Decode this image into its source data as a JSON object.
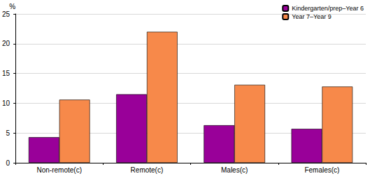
{
  "chart_data": {
    "type": "bar",
    "ylabel": "%",
    "categories": [
      "Non-remote(c)",
      "Remote(c)",
      "Males(c)",
      "Females(c)"
    ],
    "series": [
      {
        "name": "Kindergarten/prep–Year 6",
        "color": "#990099",
        "values": [
          4.3,
          11.5,
          6.3,
          5.7
        ]
      },
      {
        "name": "Year 7–Year 9",
        "color": "#f7894a",
        "values": [
          10.6,
          22.0,
          13.1,
          12.8
        ]
      }
    ],
    "ylim": [
      0,
      25
    ],
    "yticks": [
      0,
      5,
      10,
      15,
      20,
      25
    ],
    "grid": true,
    "legend": "top-right"
  }
}
